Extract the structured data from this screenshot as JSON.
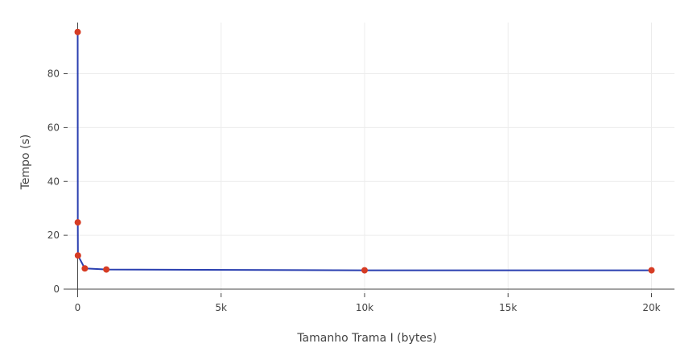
{
  "chart_data": {
    "type": "line",
    "xlabel": "Tamanho Trama I (bytes)",
    "ylabel": "Tempo (s)",
    "xlim": [
      -350,
      20800
    ],
    "ylim": [
      -1.5,
      99
    ],
    "x_ticks": [
      0,
      5000,
      10000,
      15000,
      20000
    ],
    "x_tick_labels": [
      "0",
      "5k",
      "10k",
      "15k",
      "20k"
    ],
    "y_ticks": [
      0,
      20,
      40,
      60,
      80
    ],
    "y_tick_labels": [
      "0",
      "20",
      "40",
      "60",
      "80"
    ],
    "grid": true,
    "series": [
      {
        "line_color": "#2a3fb0",
        "marker_color": "#d63c24",
        "x": [
          1,
          5,
          10,
          250,
          1000,
          10000,
          20000
        ],
        "y": [
          95.5,
          24.8,
          12.5,
          7.7,
          7.3,
          7.0,
          7.0
        ]
      }
    ]
  }
}
